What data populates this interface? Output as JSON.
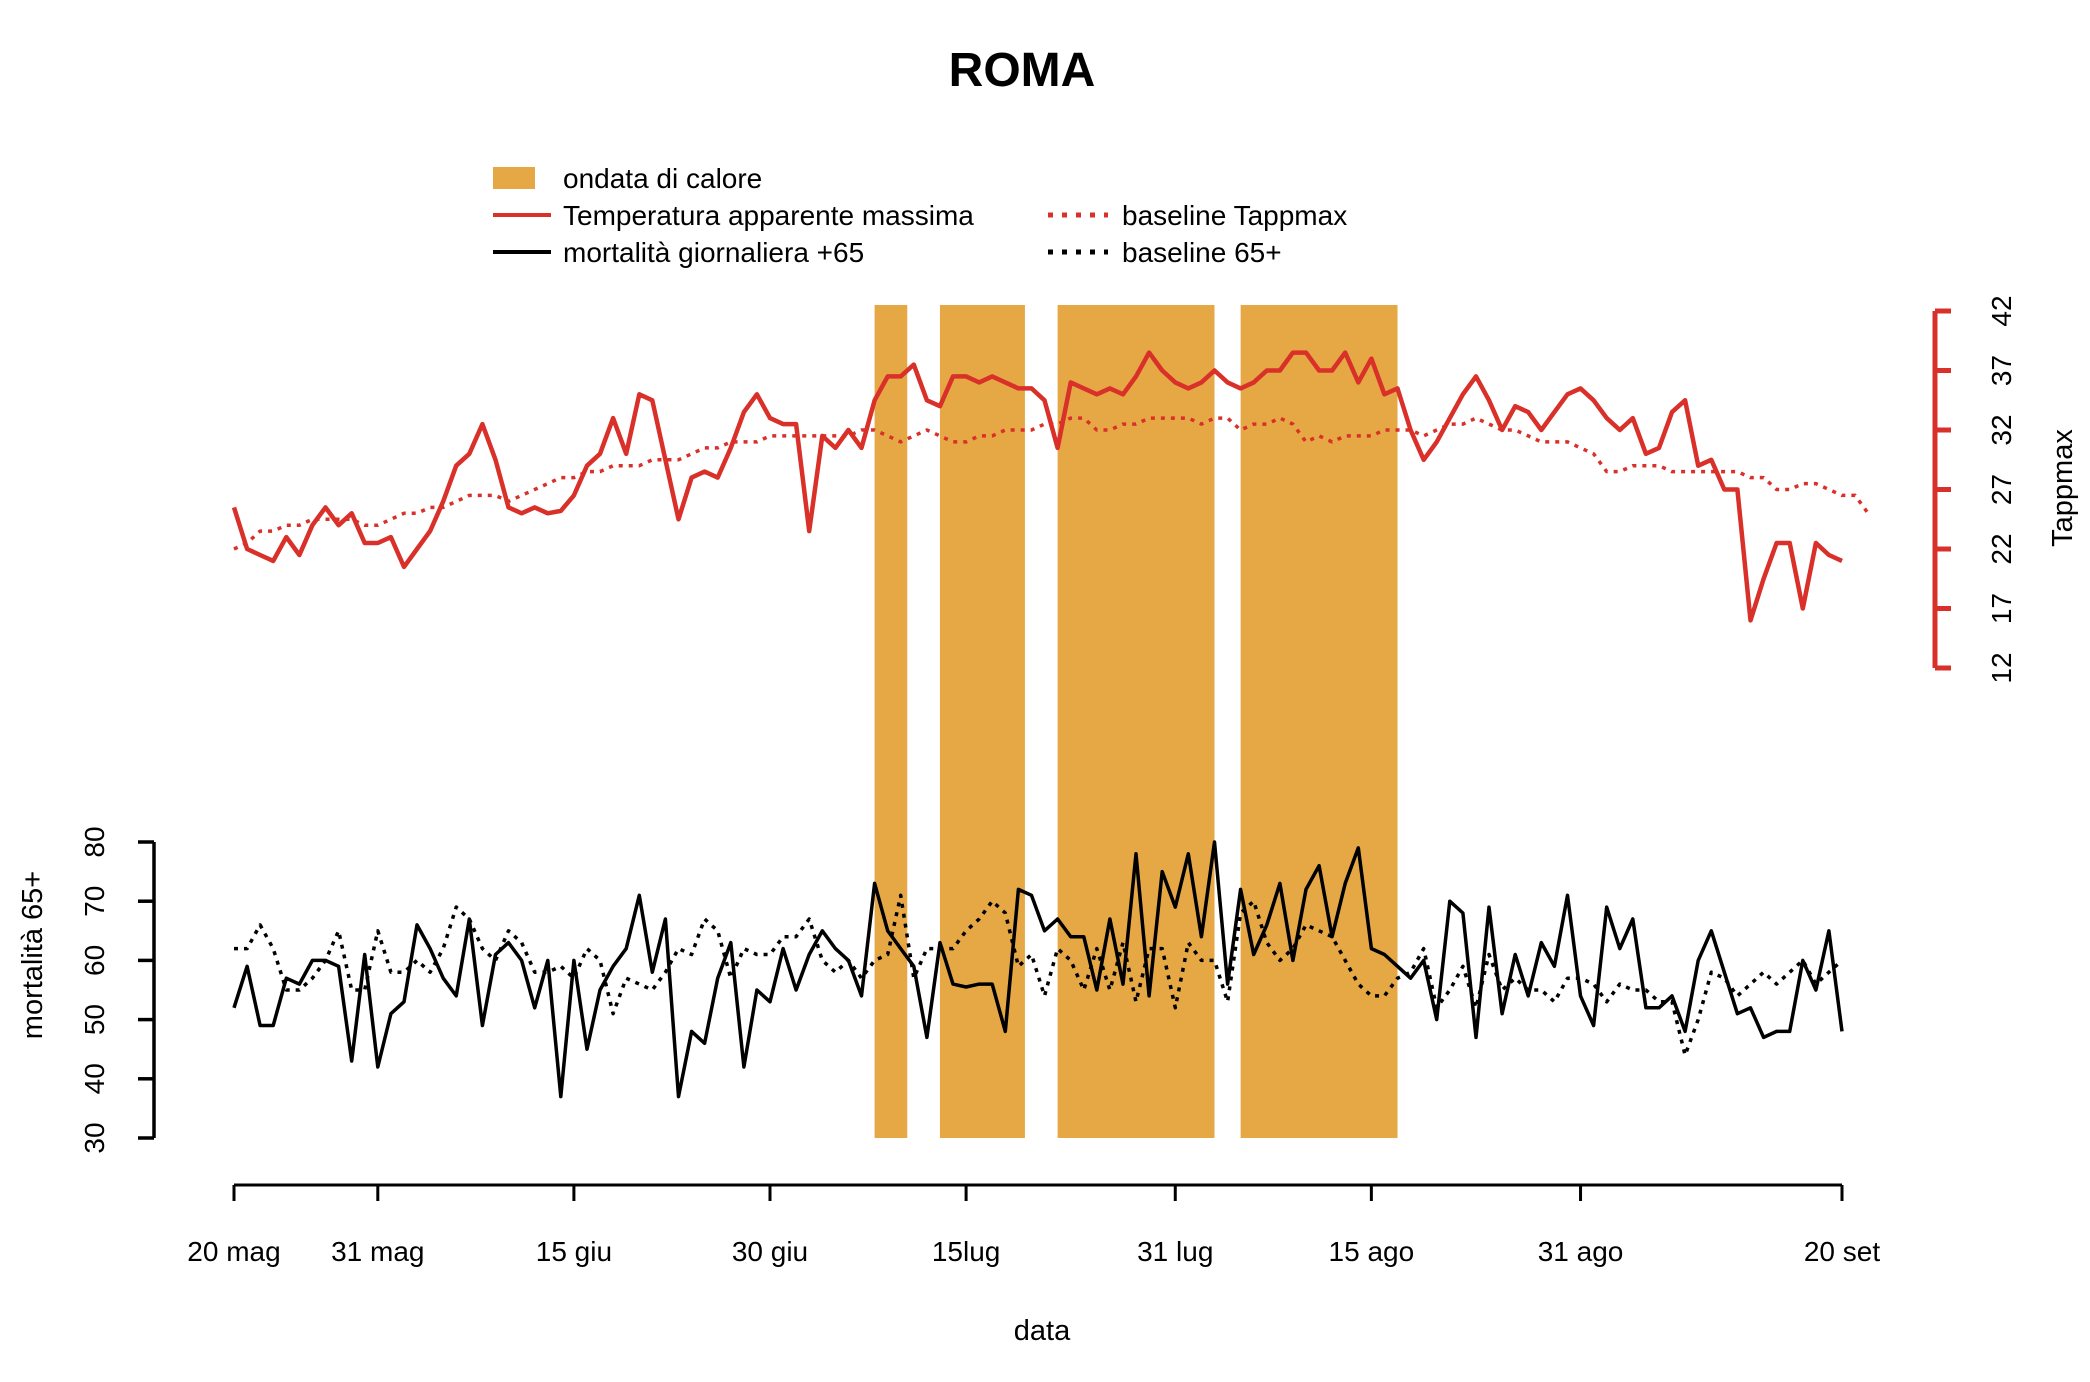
{
  "chart_data": {
    "type": "line",
    "title": "ROMA",
    "xlabel": "data",
    "x_tick_labels": [
      "20 mag",
      "31 mag",
      "15 giu",
      "30 giu",
      "15lug",
      "31 lug",
      "15 ago",
      "31 ago",
      "20 set"
    ],
    "x_tick_days": [
      0,
      11,
      26,
      41,
      56,
      72,
      87,
      103,
      123
    ],
    "x_range_days": [
      0,
      123
    ],
    "heatwave_periods_days": [
      [
        49,
        51.5
      ],
      [
        54,
        60.5
      ],
      [
        63,
        75
      ],
      [
        77,
        89
      ]
    ],
    "top_panel": {
      "ylabel": "Tappmax",
      "y_ticks": [
        12,
        17,
        22,
        27,
        32,
        37,
        42
      ],
      "ylim": [
        12,
        42
      ],
      "axis_side": "right"
    },
    "bottom_panel": {
      "ylabel": "mortalità 65+",
      "y_ticks": [
        30,
        40,
        50,
        60,
        70,
        80
      ],
      "ylim": [
        30,
        80
      ],
      "axis_side": "left"
    },
    "legend": {
      "heatwave": "ondata di calore",
      "tappmax": "Temperatura apparente massima",
      "tappmax_baseline": "baseline Tappmax",
      "mortality": "mortalità giornaliera +65",
      "mortality_baseline": "baseline 65+"
    },
    "series": [
      {
        "name": "Temperatura apparente massima",
        "panel": "top",
        "style": "solid",
        "color": "#d93029",
        "values": [
          25.5,
          22,
          21.5,
          21,
          23,
          21.5,
          24,
          25.5,
          24,
          25,
          22.5,
          22.5,
          23,
          20.5,
          22,
          23.5,
          26,
          29,
          30,
          32.5,
          29.5,
          25.5,
          25,
          25.5,
          25,
          25.2,
          26.5,
          29,
          30,
          33,
          30,
          35,
          34.5,
          29.5,
          24.5,
          28,
          28.5,
          28,
          30.5,
          33.5,
          35,
          33,
          32.5,
          32.5,
          23.5,
          31.5,
          30.5,
          32,
          30.5,
          34.5,
          36.5,
          36.5,
          37.5,
          34.5,
          34,
          36.5,
          36.5,
          36,
          36.5,
          36,
          35.5,
          35.5,
          34.5,
          30.5,
          36,
          35.5,
          35,
          35.5,
          35,
          36.5,
          38.5,
          37,
          36,
          35.5,
          36,
          37,
          36,
          35.5,
          36,
          37,
          37,
          38.5,
          38.5,
          37,
          37,
          38.5,
          36,
          38,
          35,
          35.5,
          32,
          29.5,
          31,
          33,
          35,
          36.5,
          34.5,
          32,
          34,
          33.5,
          32,
          33.5,
          35,
          35.5,
          34.5,
          33,
          32,
          33,
          30,
          30.5,
          33.5,
          34.5,
          29,
          29.5,
          27,
          27,
          16,
          19.5,
          22.5,
          22.5,
          17,
          22.5,
          21.5,
          21
        ]
      },
      {
        "name": "baseline Tappmax",
        "panel": "top",
        "style": "dotted",
        "color": "#d93029",
        "values": [
          22,
          22.5,
          23.5,
          23.5,
          24,
          24,
          24.5,
          24.5,
          24.5,
          24.5,
          24,
          24,
          24.5,
          25,
          25,
          25.5,
          25.5,
          26,
          26.5,
          26.5,
          26.5,
          26,
          26.5,
          27,
          27.5,
          28,
          28,
          28.5,
          28.5,
          29,
          29,
          29,
          29.5,
          29.5,
          29.5,
          30,
          30.5,
          30.5,
          31,
          31,
          31,
          31.5,
          31.5,
          31.5,
          31.5,
          31.5,
          31.5,
          31.5,
          32,
          32,
          31.5,
          31,
          31.5,
          32,
          31.5,
          31,
          31,
          31.5,
          31.5,
          32,
          32,
          32,
          32.5,
          32.5,
          33,
          33,
          32,
          32,
          32.5,
          32.5,
          33,
          33,
          33,
          33,
          32.5,
          33,
          33,
          32,
          32.5,
          32.5,
          33,
          32.5,
          31,
          31.5,
          31,
          31.5,
          31.5,
          31.5,
          32,
          32,
          32,
          31.5,
          32,
          32.5,
          32.5,
          33,
          32.5,
          32,
          32,
          31.5,
          31,
          31,
          31,
          30.5,
          30,
          28.5,
          28.5,
          29,
          29,
          29,
          28.5,
          28.5,
          28.5,
          28.5,
          28.5,
          28.5,
          28,
          28,
          27,
          27,
          27.5,
          27.5,
          27,
          26.5,
          26.5,
          25
        ]
      },
      {
        "name": "mortalità giornaliera +65",
        "panel": "bottom",
        "style": "solid",
        "color": "#000000",
        "values": [
          52,
          59,
          49,
          49,
          57,
          56,
          60,
          60,
          59,
          43,
          61,
          42,
          51,
          53,
          66,
          62,
          57,
          54,
          67,
          49,
          61,
          63,
          60,
          52,
          60,
          37,
          60,
          45,
          55,
          59,
          62,
          71,
          58,
          67,
          37,
          48,
          46,
          57,
          63,
          42,
          55,
          53,
          62,
          55,
          61,
          65,
          62,
          60,
          54,
          73,
          65,
          62,
          59,
          47,
          63,
          56,
          55.5,
          56,
          56,
          48,
          72,
          71,
          65,
          67,
          64,
          64,
          55,
          67,
          56,
          78,
          54,
          75,
          69,
          78,
          64,
          80,
          56,
          72,
          61,
          66,
          73,
          60,
          72,
          76,
          64,
          73,
          79,
          62,
          61,
          59,
          57,
          60,
          50,
          70,
          68,
          47,
          69,
          51,
          61,
          54,
          63,
          59,
          71,
          54,
          49,
          69,
          62,
          67,
          52,
          52,
          54,
          48,
          60,
          65,
          58,
          51,
          52,
          47,
          48,
          48,
          60,
          55,
          65,
          48
        ]
      },
      {
        "name": "baseline 65+",
        "panel": "bottom",
        "style": "dotted",
        "color": "#000000",
        "values": [
          62,
          62,
          66,
          62,
          55,
          55,
          57,
          60,
          65,
          55,
          55,
          65,
          58,
          58,
          60,
          58,
          62,
          69,
          67,
          62,
          60,
          65,
          63,
          58,
          58,
          59,
          57,
          62,
          60,
          51,
          57,
          56,
          55,
          58,
          62,
          61,
          67,
          65,
          57,
          62,
          61,
          61,
          64,
          64,
          67,
          60,
          58,
          60,
          57,
          60,
          61,
          71,
          57,
          62,
          62,
          62,
          65,
          67,
          70,
          68,
          59,
          61,
          54,
          62,
          60,
          55,
          62,
          55,
          63,
          53,
          62,
          62,
          52,
          63,
          60,
          60,
          53,
          68,
          70,
          63,
          60,
          62,
          66,
          65,
          64,
          60,
          56,
          54,
          54,
          57,
          58,
          62,
          52,
          55,
          59,
          52,
          61,
          55,
          57,
          55,
          55,
          53,
          57,
          57,
          56,
          53,
          56,
          55,
          55,
          53,
          53,
          44,
          50,
          58,
          57,
          54,
          56,
          58,
          56,
          58,
          60,
          56,
          58,
          60
        ]
      }
    ],
    "colors": {
      "heatwave": "#e5a845",
      "temperature": "#d93029",
      "mortality": "#000000"
    }
  }
}
